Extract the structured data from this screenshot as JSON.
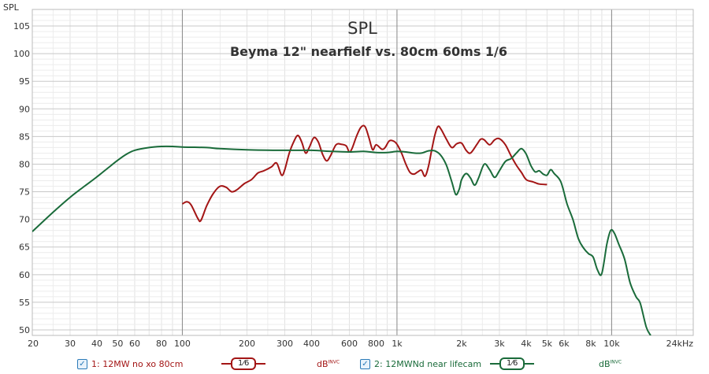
{
  "chart_data": {
    "type": "line",
    "title": "SPL",
    "subtitle": "Beyma 12\" nearfielf vs. 80cm 60ms 1/6",
    "ylabel": "SPL",
    "xlabel": "",
    "xscale": "log",
    "xlim": [
      20,
      24000
    ],
    "ylim": [
      49,
      108
    ],
    "yticks": [
      50,
      55,
      60,
      65,
      70,
      75,
      80,
      85,
      90,
      95,
      100,
      105
    ],
    "xticks": [
      {
        "v": 20,
        "label": "20"
      },
      {
        "v": 30,
        "label": "30"
      },
      {
        "v": 40,
        "label": "40"
      },
      {
        "v": 50,
        "label": "50"
      },
      {
        "v": 60,
        "label": "60"
      },
      {
        "v": 80,
        "label": "80"
      },
      {
        "v": 100,
        "label": "100"
      },
      {
        "v": 200,
        "label": "200"
      },
      {
        "v": 300,
        "label": "300"
      },
      {
        "v": 400,
        "label": "400"
      },
      {
        "v": 600,
        "label": "600"
      },
      {
        "v": 800,
        "label": "800"
      },
      {
        "v": 1000,
        "label": "1k"
      },
      {
        "v": 2000,
        "label": "2k"
      },
      {
        "v": 3000,
        "label": "3k"
      },
      {
        "v": 4000,
        "label": "4k"
      },
      {
        "v": 5000,
        "label": "5k"
      },
      {
        "v": 6000,
        "label": "6k"
      },
      {
        "v": 8000,
        "label": "8k"
      },
      {
        "v": 10000,
        "label": "10k"
      },
      {
        "v": 24000,
        "label": "24kHz"
      }
    ],
    "grid": true,
    "series": [
      {
        "name": "1: 12MW no xo 80cm",
        "color": "#a31515",
        "points": [
          [
            100,
            72.8
          ],
          [
            105,
            73.2
          ],
          [
            110,
            72.6
          ],
          [
            118,
            70.2
          ],
          [
            122,
            69.8
          ],
          [
            130,
            72.5
          ],
          [
            140,
            74.8
          ],
          [
            150,
            76.0
          ],
          [
            160,
            75.8
          ],
          [
            170,
            75.0
          ],
          [
            180,
            75.4
          ],
          [
            195,
            76.5
          ],
          [
            210,
            77.2
          ],
          [
            225,
            78.4
          ],
          [
            240,
            78.8
          ],
          [
            260,
            79.5
          ],
          [
            275,
            80.2
          ],
          [
            290,
            78.0
          ],
          [
            300,
            79.0
          ],
          [
            315,
            82.0
          ],
          [
            330,
            84.0
          ],
          [
            345,
            85.2
          ],
          [
            360,
            84.0
          ],
          [
            375,
            82.0
          ],
          [
            390,
            83.0
          ],
          [
            410,
            84.8
          ],
          [
            430,
            84.0
          ],
          [
            450,
            81.8
          ],
          [
            470,
            80.6
          ],
          [
            490,
            81.5
          ],
          [
            520,
            83.5
          ],
          [
            550,
            83.6
          ],
          [
            580,
            83.3
          ],
          [
            600,
            82.2
          ],
          [
            620,
            83.0
          ],
          [
            650,
            85.2
          ],
          [
            680,
            86.7
          ],
          [
            710,
            86.8
          ],
          [
            740,
            84.8
          ],
          [
            770,
            82.6
          ],
          [
            800,
            83.5
          ],
          [
            850,
            82.7
          ],
          [
            880,
            83.0
          ],
          [
            920,
            84.2
          ],
          [
            960,
            84.2
          ],
          [
            1000,
            83.6
          ],
          [
            1050,
            82.0
          ],
          [
            1100,
            80.0
          ],
          [
            1150,
            78.5
          ],
          [
            1200,
            78.2
          ],
          [
            1250,
            78.6
          ],
          [
            1300,
            78.9
          ],
          [
            1350,
            77.8
          ],
          [
            1400,
            79.5
          ],
          [
            1450,
            82.5
          ],
          [
            1500,
            85.2
          ],
          [
            1550,
            86.8
          ],
          [
            1600,
            86.4
          ],
          [
            1700,
            84.5
          ],
          [
            1800,
            83.0
          ],
          [
            1900,
            83.7
          ],
          [
            2000,
            83.8
          ],
          [
            2100,
            82.5
          ],
          [
            2200,
            82.0
          ],
          [
            2350,
            83.5
          ],
          [
            2450,
            84.5
          ],
          [
            2550,
            84.4
          ],
          [
            2700,
            83.5
          ],
          [
            2850,
            84.4
          ],
          [
            3000,
            84.6
          ],
          [
            3200,
            83.5
          ],
          [
            3400,
            81.5
          ],
          [
            3600,
            79.8
          ],
          [
            3800,
            78.5
          ],
          [
            4000,
            77.2
          ],
          [
            4300,
            76.8
          ],
          [
            4600,
            76.4
          ],
          [
            5000,
            76.3
          ]
        ]
      },
      {
        "name": "2: 12MWNd near lifecam",
        "color": "#1a6b3a",
        "points": [
          [
            20,
            67.8
          ],
          [
            25,
            71.3
          ],
          [
            30,
            74.0
          ],
          [
            35,
            76.0
          ],
          [
            40,
            77.7
          ],
          [
            45,
            79.3
          ],
          [
            50,
            80.7
          ],
          [
            55,
            81.8
          ],
          [
            60,
            82.5
          ],
          [
            70,
            83.0
          ],
          [
            80,
            83.2
          ],
          [
            90,
            83.2
          ],
          [
            100,
            83.1
          ],
          [
            130,
            83.0
          ],
          [
            150,
            82.8
          ],
          [
            200,
            82.6
          ],
          [
            300,
            82.5
          ],
          [
            400,
            82.5
          ],
          [
            500,
            82.3
          ],
          [
            600,
            82.2
          ],
          [
            700,
            82.3
          ],
          [
            800,
            82.1
          ],
          [
            900,
            82.1
          ],
          [
            1000,
            82.3
          ],
          [
            1100,
            82.2
          ],
          [
            1200,
            82.0
          ],
          [
            1300,
            82.0
          ],
          [
            1400,
            82.4
          ],
          [
            1500,
            82.4
          ],
          [
            1600,
            81.6
          ],
          [
            1700,
            79.8
          ],
          [
            1800,
            76.8
          ],
          [
            1880,
            74.5
          ],
          [
            1950,
            75.5
          ],
          [
            2000,
            77.2
          ],
          [
            2100,
            78.3
          ],
          [
            2200,
            77.5
          ],
          [
            2300,
            76.2
          ],
          [
            2400,
            77.5
          ],
          [
            2550,
            80.0
          ],
          [
            2700,
            79.0
          ],
          [
            2850,
            77.6
          ],
          [
            3000,
            78.8
          ],
          [
            3200,
            80.5
          ],
          [
            3400,
            81.0
          ],
          [
            3600,
            82.0
          ],
          [
            3800,
            82.8
          ],
          [
            4000,
            81.8
          ],
          [
            4200,
            79.8
          ],
          [
            4400,
            78.6
          ],
          [
            4600,
            78.8
          ],
          [
            4800,
            78.2
          ],
          [
            5000,
            78.0
          ],
          [
            5200,
            79.0
          ],
          [
            5400,
            78.3
          ],
          [
            5800,
            76.8
          ],
          [
            6200,
            72.8
          ],
          [
            6600,
            70.0
          ],
          [
            7000,
            66.5
          ],
          [
            7400,
            64.8
          ],
          [
            7800,
            63.8
          ],
          [
            8200,
            63.2
          ],
          [
            8600,
            60.8
          ],
          [
            9000,
            60.2
          ],
          [
            9500,
            65.5
          ],
          [
            9900,
            68.0
          ],
          [
            10300,
            67.5
          ],
          [
            10800,
            65.5
          ],
          [
            11500,
            62.8
          ],
          [
            12200,
            58.5
          ],
          [
            13000,
            56.0
          ],
          [
            13600,
            54.8
          ],
          [
            14500,
            50.5
          ],
          [
            15200,
            49.0
          ]
        ]
      }
    ]
  },
  "legend": {
    "item1_label": "1: 12MW no xo 80cm",
    "item1_smoothing": "1⁄6",
    "item1_unit": "dB",
    "item1_unit_sup": "INVC",
    "item2_label": "2: 12MWNd near lifecam",
    "item2_smoothing": "1⁄6",
    "item2_unit": "dB",
    "item2_unit_sup": "INVC",
    "check_mark": "✓"
  }
}
